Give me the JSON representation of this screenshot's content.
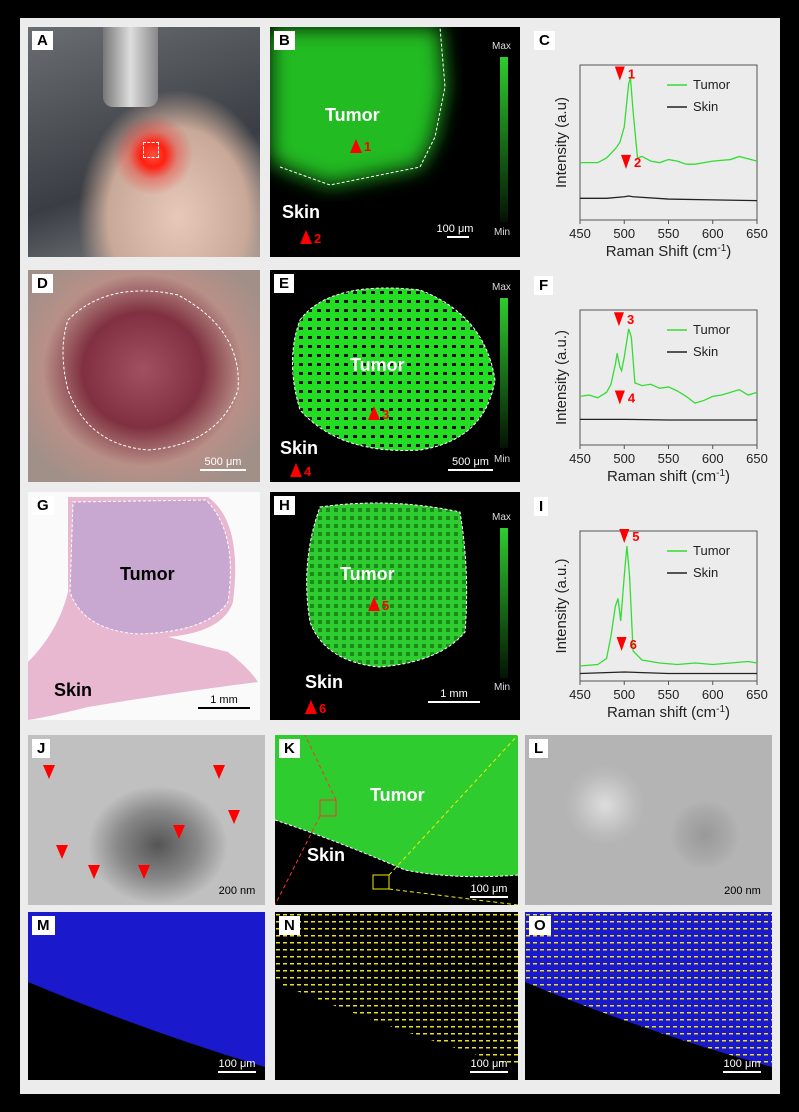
{
  "panels": {
    "A": {
      "label": "A"
    },
    "B": {
      "label": "B",
      "tumor": "Tumor",
      "skin": "Skin",
      "scale": "100 μm",
      "max": "Max",
      "min": "Min",
      "m1": "1",
      "m2": "2"
    },
    "C": {
      "label": "C"
    },
    "D": {
      "label": "D",
      "scale": "500 μm"
    },
    "E": {
      "label": "E",
      "tumor": "Tumor",
      "skin": "Skin",
      "scale": "500 μm",
      "max": "Max",
      "min": "Min",
      "m3": "3",
      "m4": "4"
    },
    "F": {
      "label": "F"
    },
    "G": {
      "label": "G",
      "tumor": "Tumor",
      "skin": "Skin",
      "scale": "1 mm"
    },
    "H": {
      "label": "H",
      "tumor": "Tumor",
      "skin": "Skin",
      "scale": "1 mm",
      "max": "Max",
      "min": "Min",
      "m5": "5",
      "m6": "6"
    },
    "I": {
      "label": "I"
    },
    "J": {
      "label": "J",
      "scale": "200 nm"
    },
    "K": {
      "label": "K",
      "tumor": "Tumor",
      "skin": "Skin",
      "scale": "100 μm"
    },
    "L": {
      "label": "L",
      "scale": "200 nm"
    },
    "M": {
      "label": "M",
      "scale": "100 μm"
    },
    "N": {
      "label": "N",
      "scale": "100 μm"
    },
    "O": {
      "label": "O",
      "scale": "100 μm"
    }
  },
  "colors": {
    "tumor": "#33dd33",
    "skin": "#222222",
    "marker": "#ff0000",
    "fluor": "#22cc22",
    "dapi": "#1a1aff",
    "stain": "#e8e020"
  },
  "chart_data": [
    {
      "type": "line",
      "panel": "C",
      "xlabel": "Raman Shift (cm-1)",
      "ylabel": "Intensity (a.u)",
      "xlim": [
        450,
        650
      ],
      "ylim": [
        0,
        100
      ],
      "xticks": [
        450,
        500,
        550,
        600,
        650
      ],
      "legend": "top-right",
      "markers": [
        {
          "text": "1",
          "x": 495,
          "dir": "down",
          "y": 90
        },
        {
          "text": "2",
          "x": 502,
          "dir": "down",
          "y": 33
        }
      ],
      "series": [
        {
          "name": "Tumor",
          "color": "#33dd33",
          "x": [
            450,
            460,
            470,
            480,
            490,
            495,
            500,
            505,
            507,
            510,
            515,
            520,
            530,
            540,
            550,
            560,
            570,
            580,
            600,
            620,
            630,
            650
          ],
          "y": [
            37,
            37,
            37,
            40,
            46,
            50,
            60,
            88,
            92,
            70,
            40,
            41,
            38,
            37,
            39,
            38,
            36,
            36,
            38,
            39,
            41,
            38
          ]
        },
        {
          "name": "Skin",
          "color": "#222222",
          "x": [
            450,
            480,
            500,
            505,
            510,
            550,
            600,
            650
          ],
          "y": [
            14,
            14,
            15,
            15.5,
            15,
            13.5,
            13,
            12.5
          ]
        }
      ]
    },
    {
      "type": "line",
      "panel": "F",
      "xlabel": "Raman shift (cm-1)",
      "ylabel": "Intensity (a.u.)",
      "xlim": [
        450,
        650
      ],
      "ylim": [
        0,
        100
      ],
      "xticks": [
        450,
        500,
        550,
        600,
        650
      ],
      "legend": "top-right",
      "markers": [
        {
          "text": "3",
          "x": 494,
          "dir": "down",
          "y": 88
        },
        {
          "text": "4",
          "x": 495,
          "dir": "down",
          "y": 30
        }
      ],
      "series": [
        {
          "name": "Tumor",
          "color": "#33dd33",
          "x": [
            450,
            460,
            470,
            480,
            485,
            490,
            492,
            495,
            497,
            500,
            505,
            508,
            512,
            520,
            530,
            540,
            550,
            560,
            570,
            580,
            590,
            600,
            610,
            620,
            630,
            640,
            650
          ],
          "y": [
            36,
            37,
            35,
            39,
            45,
            60,
            68,
            58,
            55,
            65,
            86,
            80,
            46,
            44,
            45,
            42,
            43,
            40,
            36,
            31,
            33,
            36,
            37,
            39,
            41,
            37,
            39
          ]
        },
        {
          "name": "Skin",
          "color": "#222222",
          "x": [
            450,
            500,
            550,
            600,
            650
          ],
          "y": [
            19,
            19,
            18.5,
            18.5,
            18.5
          ]
        }
      ]
    },
    {
      "type": "line",
      "panel": "I",
      "xlabel": "Raman shift (cm-1)",
      "ylabel": "Intensity (a.u.)",
      "xlim": [
        450,
        650
      ],
      "ylim": [
        0,
        100
      ],
      "xticks": [
        450,
        500,
        550,
        600,
        650
      ],
      "legend": "top-right",
      "markers": [
        {
          "text": "5",
          "x": 500,
          "dir": "down",
          "y": 92
        },
        {
          "text": "6",
          "x": 497,
          "dir": "down",
          "y": 20
        }
      ],
      "series": [
        {
          "name": "Tumor",
          "color": "#33dd33",
          "x": [
            450,
            470,
            480,
            485,
            490,
            493,
            496,
            500,
            503,
            506,
            510,
            520,
            540,
            560,
            580,
            600,
            620,
            640,
            650
          ],
          "y": [
            10,
            11,
            15,
            30,
            50,
            55,
            40,
            70,
            90,
            70,
            20,
            14,
            12,
            11,
            12,
            11,
            12,
            13,
            12
          ]
        },
        {
          "name": "Skin",
          "color": "#222222",
          "x": [
            450,
            500,
            550,
            600,
            650
          ],
          "y": [
            5,
            6,
            5,
            5,
            5
          ]
        }
      ]
    }
  ]
}
